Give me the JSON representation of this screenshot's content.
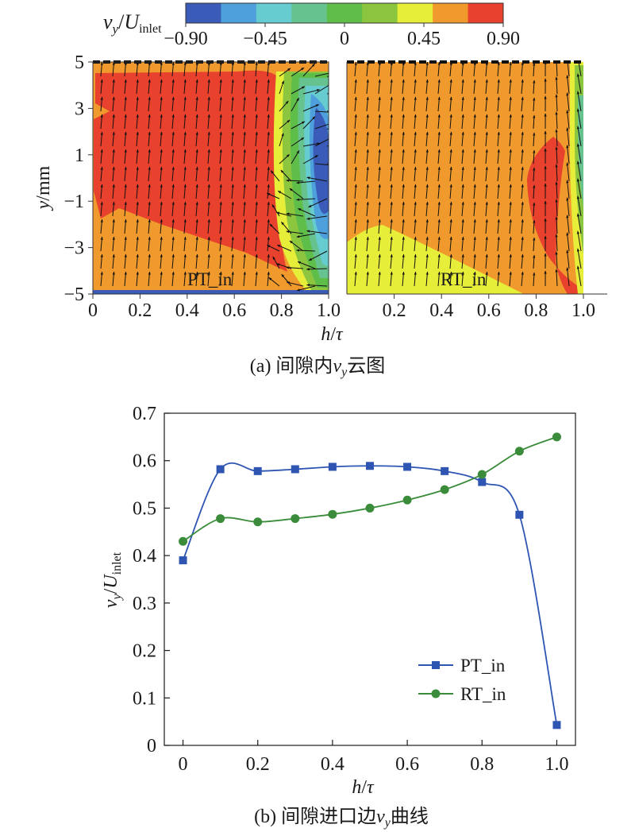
{
  "colors": {
    "scale": [
      "#3a5bb8",
      "#4ea0dd",
      "#67cccf",
      "#66c28e",
      "#5fbe4a",
      "#8cc63e",
      "#e7ee3a",
      "#f09a2e",
      "#e8412d"
    ],
    "pt_line": "#2f55b3",
    "rt_line": "#3a8c3a",
    "axis": "#1a1a1a"
  },
  "chart_data": [
    {
      "type": "heatmap",
      "caption": {
        "prefix": "(a) 间隙内",
        "var": "v",
        "sub": "y",
        "suffix": "云图"
      },
      "colorbar": {
        "label_var": "v",
        "label_var_sub": "y",
        "label_sep": "/",
        "label_den": "U",
        "label_den_sub": "inlet",
        "ticks": [
          "−0.90",
          "−0.45",
          "0",
          "0.45",
          "0.90"
        ],
        "range": [
          -0.9,
          0.9
        ],
        "levels": 9
      },
      "ylabel": {
        "var": "y",
        "unit": "/mm"
      },
      "yticks": [
        "5",
        "3",
        "1",
        "−1",
        "−3",
        "−5"
      ],
      "ylim": [
        -5,
        5
      ],
      "xlabel": {
        "var": "h",
        "sep": "/",
        "den": "τ"
      },
      "panels": [
        {
          "name": "PT_in",
          "xticks": [
            "0",
            "0.2",
            "0.4",
            "0.6",
            "0.8",
            "1.0"
          ],
          "xlim": [
            0,
            1.0
          ]
        },
        {
          "name": "RT_in",
          "xticks": [
            "0.2",
            "0.4",
            "0.6",
            "0.8",
            "1.0"
          ],
          "xlim": [
            0,
            1.1
          ]
        }
      ]
    },
    {
      "type": "line",
      "caption": {
        "prefix": "(b) 间隙进口边",
        "var": "v",
        "sub": "y",
        "suffix": "曲线"
      },
      "ylabel": {
        "var": "v",
        "sub": "y",
        "sep": "/",
        "den": "U",
        "den_sub": "inlet"
      },
      "xlabel": {
        "var": "h",
        "sep": "/",
        "den": "τ"
      },
      "xlim": [
        -0.05,
        1.05
      ],
      "ylim": [
        0,
        0.7
      ],
      "xticks": [
        "0",
        "0.2",
        "0.4",
        "0.6",
        "0.8",
        "1.0"
      ],
      "yticks": [
        "0",
        "0.1",
        "0.2",
        "0.3",
        "0.4",
        "0.5",
        "0.6",
        "0.7"
      ],
      "legend_position": "lower-right",
      "series": [
        {
          "name": "PT_in",
          "marker": "square",
          "x": [
            0,
            0.1,
            0.2,
            0.3,
            0.4,
            0.5,
            0.6,
            0.7,
            0.8,
            0.9,
            1.0
          ],
          "y": [
            0.39,
            0.582,
            0.578,
            0.582,
            0.587,
            0.589,
            0.587,
            0.578,
            0.555,
            0.486,
            0.043
          ]
        },
        {
          "name": "RT_in",
          "marker": "circle",
          "x": [
            0,
            0.1,
            0.2,
            0.3,
            0.4,
            0.5,
            0.6,
            0.7,
            0.8,
            0.9,
            1.0
          ],
          "y": [
            0.43,
            0.478,
            0.471,
            0.478,
            0.487,
            0.5,
            0.517,
            0.539,
            0.571,
            0.62,
            0.65
          ]
        }
      ]
    }
  ]
}
